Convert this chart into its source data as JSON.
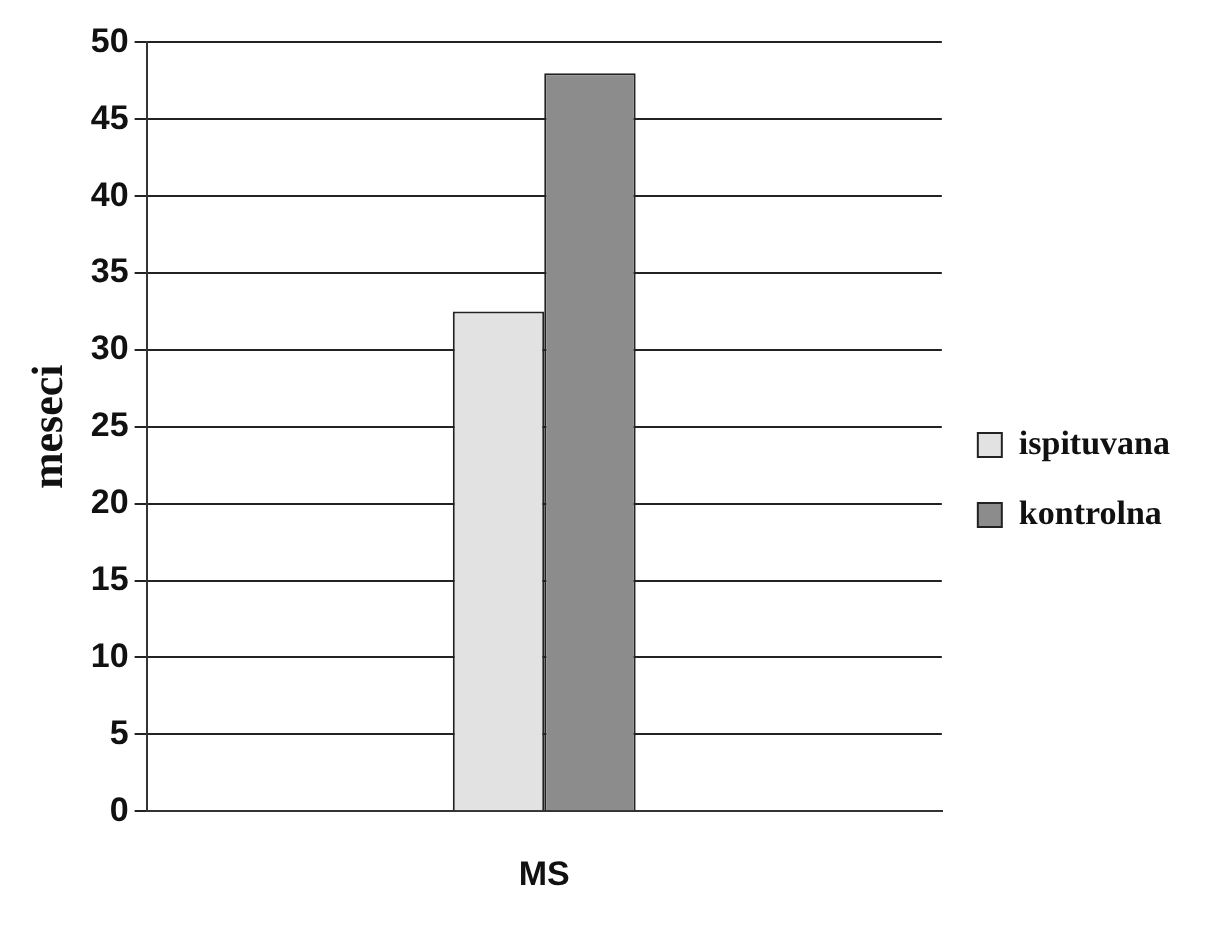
{
  "chart_data": {
    "type": "bar",
    "ylabel": "meseci",
    "categories": [
      "MS"
    ],
    "series": [
      {
        "name": "ispituvana",
        "color": "#e2e2e2",
        "values": [
          32.5
        ]
      },
      {
        "name": "kontrolna",
        "color": "#8c8c8c",
        "values": [
          48
        ]
      }
    ],
    "ylim": [
      0,
      50
    ],
    "yticks": [
      0,
      5,
      10,
      15,
      20,
      25,
      30,
      35,
      40,
      45,
      50
    ],
    "grid": "y",
    "legend": "right"
  }
}
